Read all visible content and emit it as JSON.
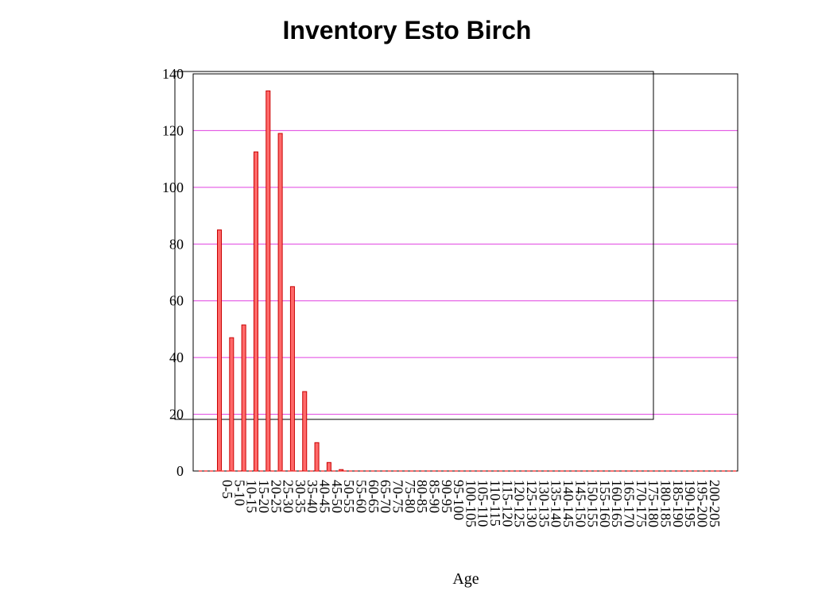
{
  "chart_data": {
    "type": "bar",
    "title": "Inventory Esto Birch",
    "xlabel": "Age",
    "ylabel": "",
    "ylim": [
      0,
      140
    ],
    "yticks": [
      0,
      20,
      40,
      60,
      80,
      100,
      120,
      140
    ],
    "grid": true,
    "colors": {
      "bar_fill": "#ff6a6a",
      "bar_stroke": "#c80000",
      "grid": "#e040e0",
      "baseline": "#ff4040",
      "frame": "#000000"
    },
    "categories": [
      "0-5",
      "5-10",
      "10-15",
      "15-20",
      "20-25",
      "25-30",
      "30-35",
      "35-40",
      "40-45",
      "45-50",
      "50-55",
      "55-60",
      "60-65",
      "65-70",
      "70-75",
      "75-80",
      "80-85",
      "85-90",
      "90-95",
      "95-100",
      "100-105",
      "105-110",
      "110-115",
      "115-120",
      "120-125",
      "125-130",
      "130-135",
      "135-140",
      "140-145",
      "145-150",
      "150-155",
      "155-160",
      "160-165",
      "165-170",
      "170-175",
      "175-180",
      "180-185",
      "185-190",
      "190-195",
      "195-200",
      "200-205"
    ],
    "values": [
      85,
      47,
      51.5,
      112.5,
      134,
      119,
      65,
      28,
      10,
      3,
      0.5,
      0,
      0,
      0,
      0,
      0,
      0,
      0,
      0,
      0,
      0,
      0,
      0,
      0,
      0,
      0,
      0,
      0,
      0,
      0,
      0,
      0,
      0,
      0,
      0,
      0,
      0,
      0,
      0,
      0,
      0
    ]
  }
}
